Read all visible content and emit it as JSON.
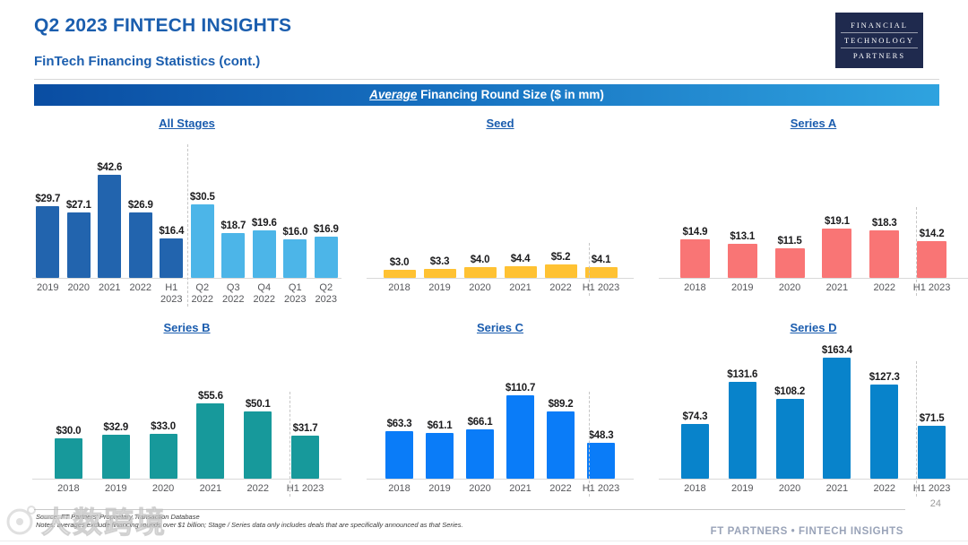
{
  "header": {
    "title": "Q2 2023 FINTECH INSIGHTS",
    "subtitle": "FinTech Financing Statistics (cont.)",
    "logo_lines": [
      "FINANCIAL",
      "TECHNOLOGY",
      "PARTNERS"
    ]
  },
  "banner": {
    "emphasis": "Average",
    "rest": " Financing Round Size ($ in mm)"
  },
  "theme": {
    "title_blue": "#1b5eae",
    "banner_gradient_left": "#0a4da2",
    "banner_gradient_right": "#2fa3df",
    "logo_navy": "#1f2a4e",
    "footer_gray_blue": "#99a3b8"
  },
  "chart_data": [
    {
      "type": "bar",
      "title": "All Stages",
      "units": "$ in mm",
      "categories": [
        "2019",
        "2020",
        "2021",
        "2022",
        "H1\n2023",
        "Q2\n2022",
        "Q3\n2022",
        "Q4\n2022",
        "Q1\n2023",
        "Q2\n2023"
      ],
      "values": [
        29.7,
        27.1,
        42.6,
        26.9,
        16.4,
        30.5,
        18.7,
        19.6,
        16.0,
        16.9
      ],
      "labels": [
        "$29.7",
        "$27.1",
        "$42.6",
        "$26.9",
        "$16.4",
        "$30.5",
        "$18.7",
        "$19.6",
        "$16.0",
        "$16.9"
      ],
      "bar_colors": [
        "#2264ae",
        "#2264ae",
        "#2264ae",
        "#2264ae",
        "#2264ae",
        "#4cb5e8",
        "#4cb5e8",
        "#4cb5e8",
        "#4cb5e8",
        "#4cb5e8"
      ],
      "divider_after_index": 4,
      "ylim": [
        0,
        42.6
      ]
    },
    {
      "type": "bar",
      "title": "Seed",
      "units": "$ in mm",
      "categories": [
        "2018",
        "2019",
        "2020",
        "2021",
        "2022",
        "H1 2023"
      ],
      "values": [
        3.0,
        3.3,
        4.0,
        4.4,
        5.2,
        4.1
      ],
      "labels": [
        "$3.0",
        "$3.3",
        "$4.0",
        "$4.4",
        "$5.2",
        "$4.1"
      ],
      "color": "#ffc233",
      "divider_after_index": 4,
      "ylim": [
        0,
        5.2
      ]
    },
    {
      "type": "bar",
      "title": "Series A",
      "units": "$ in mm",
      "categories": [
        "2018",
        "2019",
        "2020",
        "2021",
        "2022",
        "H1 2023"
      ],
      "values": [
        14.9,
        13.1,
        11.5,
        19.1,
        18.3,
        14.2
      ],
      "labels": [
        "$14.9",
        "$13.1",
        "$11.5",
        "$19.1",
        "$18.3",
        "$14.2"
      ],
      "color": "#f97575",
      "divider_after_index": 4,
      "ylim": [
        0,
        19.1
      ]
    },
    {
      "type": "bar",
      "title": "Series B",
      "units": "$ in mm",
      "categories": [
        "2018",
        "2019",
        "2020",
        "2021",
        "2022",
        "H1 2023"
      ],
      "values": [
        30.0,
        32.9,
        33.0,
        55.6,
        50.1,
        31.7
      ],
      "labels": [
        "$30.0",
        "$32.9",
        "$33.0",
        "$55.6",
        "$50.1",
        "$31.7"
      ],
      "color": "#17999b",
      "divider_after_index": 4,
      "ylim": [
        0,
        55.6
      ]
    },
    {
      "type": "bar",
      "title": "Series C",
      "units": "$ in mm",
      "categories": [
        "2018",
        "2019",
        "2020",
        "2021",
        "2022",
        "H1 2023"
      ],
      "values": [
        63.3,
        61.1,
        66.1,
        110.7,
        89.2,
        48.3
      ],
      "labels": [
        "$63.3",
        "$61.1",
        "$66.1",
        "$110.7",
        "$89.2",
        "$48.3"
      ],
      "color": "#0a7cf8",
      "divider_after_index": 4,
      "ylim": [
        0,
        110.7
      ]
    },
    {
      "type": "bar",
      "title": "Series D",
      "units": "$ in mm",
      "categories": [
        "2018",
        "2019",
        "2020",
        "2021",
        "2022",
        "H1 2023"
      ],
      "values": [
        74.3,
        131.6,
        108.2,
        163.4,
        127.3,
        71.5
      ],
      "labels": [
        "$74.3",
        "$131.6",
        "$108.2",
        "$163.4",
        "$127.3",
        "$71.5"
      ],
      "color": "#0883cb",
      "divider_after_index": 4,
      "ylim": [
        0,
        163.4
      ]
    }
  ],
  "footer": {
    "source": "Source: FT Partners' Proprietary Transaction Database",
    "notes": "Notes: averages exclude financing rounds over $1 billion; Stage / Series data only includes deals that are specifically announced as that Series.",
    "brand": "FT PARTNERS • FINTECH INSIGHTS",
    "page_number": "24"
  },
  "watermark": "大数跨境"
}
